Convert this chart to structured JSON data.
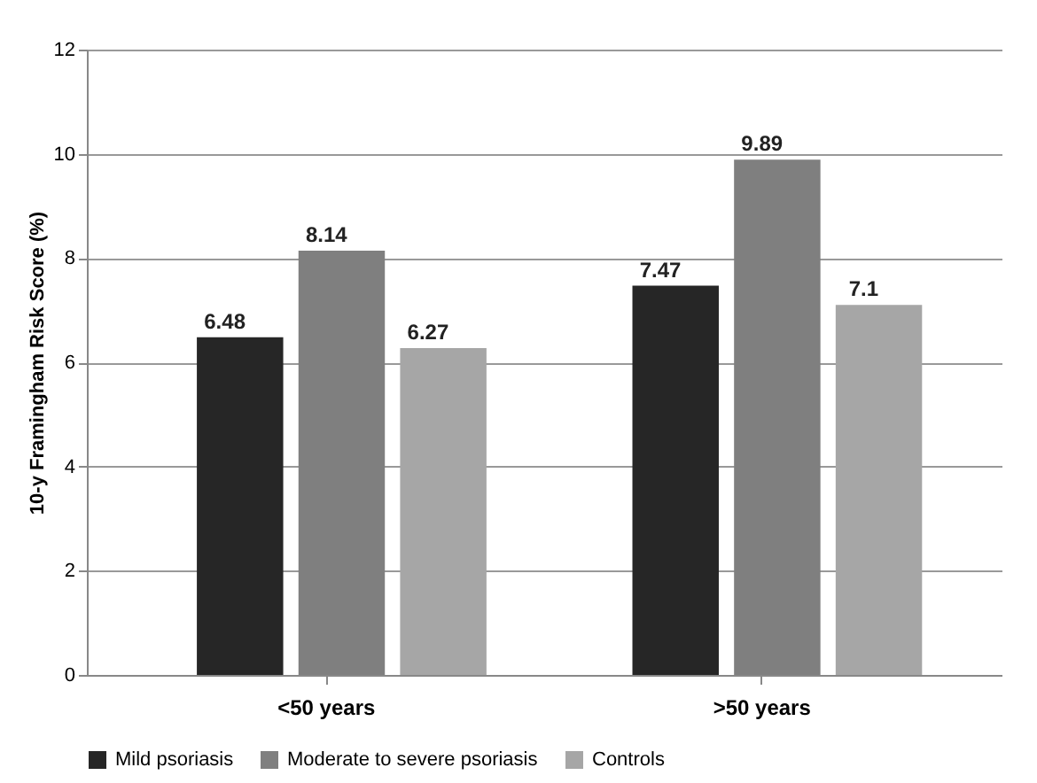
{
  "chart_data": {
    "type": "bar",
    "ylabel": "10-y Framingham Risk Score (%)",
    "categories": [
      "<50 years",
      ">50 years"
    ],
    "series": [
      {
        "name": "Mild psoriasis",
        "color": "#262626",
        "values": [
          6.48,
          7.47
        ]
      },
      {
        "name": "Moderate to severe psoriasis",
        "color": "#7f7f7f",
        "values": [
          8.14,
          9.89
        ]
      },
      {
        "name": "Controls",
        "color": "#a6a6a6",
        "values": [
          6.27,
          7.1
        ]
      }
    ],
    "ylim": [
      0,
      12
    ],
    "yticks": [
      0,
      2,
      4,
      6,
      8,
      10,
      12
    ],
    "grid": "y",
    "legend": "bottom",
    "data_labels": true
  }
}
